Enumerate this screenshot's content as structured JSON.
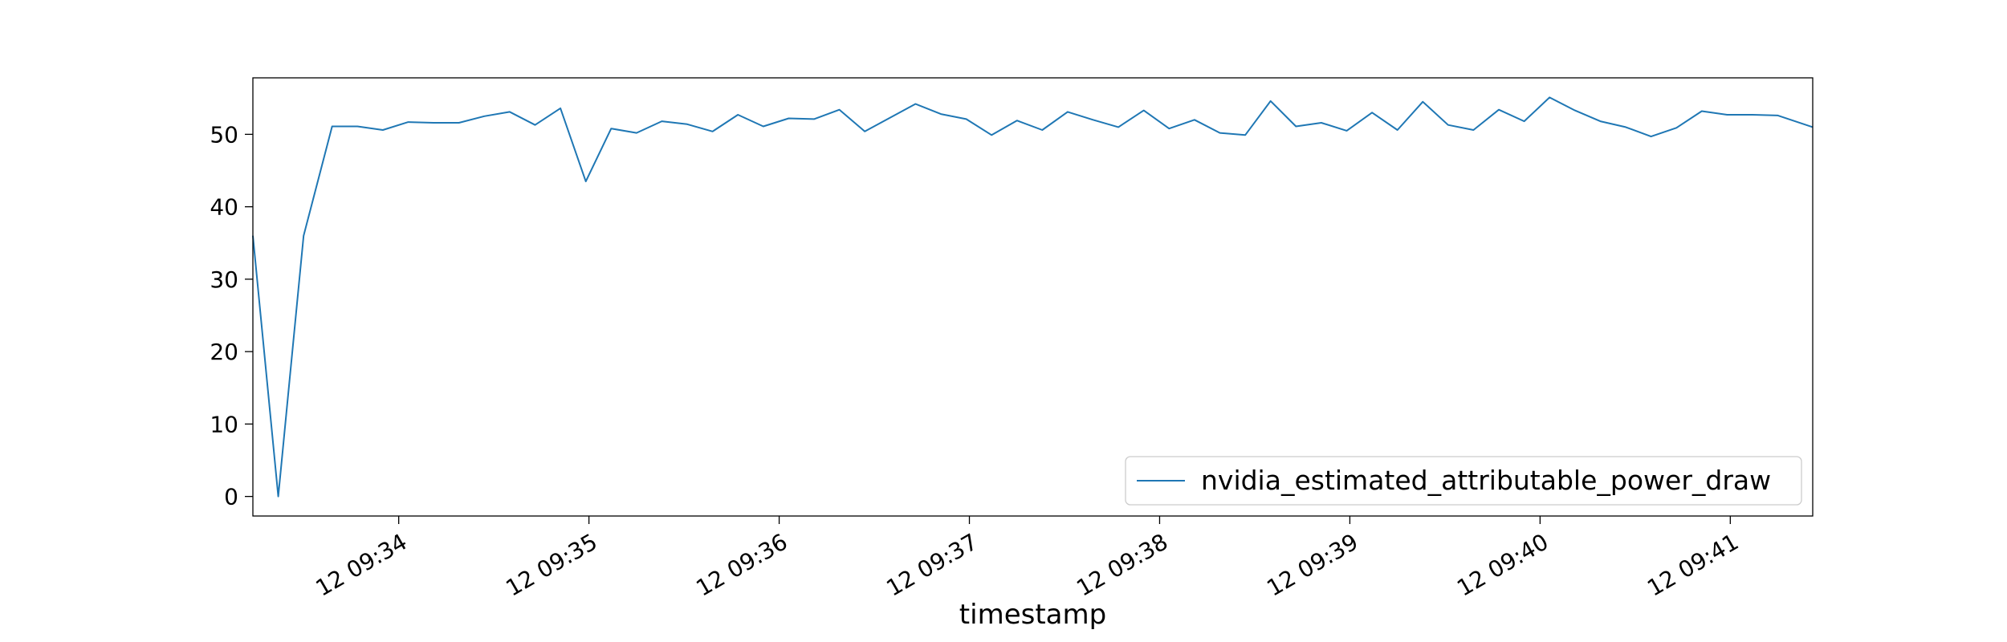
{
  "chart_data": {
    "type": "line",
    "title": "",
    "xlabel": "timestamp",
    "ylabel": "",
    "x_tick_labels": [
      "12 09:34",
      "12 09:35",
      "12 09:36",
      "12 09:37",
      "12 09:38",
      "12 09:39",
      "12 09:40",
      "12 09:41"
    ],
    "x_ticks_seconds": [
      2040,
      2100,
      2160,
      2220,
      2280,
      2340,
      2400,
      2460
    ],
    "xlim_seconds": [
      1994,
      2486
    ],
    "y_ticks": [
      0,
      10,
      20,
      30,
      40,
      50
    ],
    "ylim": [
      -2.7,
      57.8
    ],
    "legend": {
      "location": "lower-right"
    },
    "grid": false,
    "colors": {
      "series": "#1f77b4"
    },
    "series": [
      {
        "name": "nvidia_estimated_attributable_power_draw",
        "time_offsets_seconds": [
          1994,
          2002,
          2010,
          2019,
          2027,
          2035,
          2043,
          2051,
          2059,
          2067,
          2075,
          2083,
          2091,
          2099,
          2107,
          2115,
          2123,
          2131,
          2139,
          2147,
          2155,
          2163,
          2171,
          2179,
          2187,
          2195,
          2203,
          2211,
          2219,
          2227,
          2235,
          2243,
          2251,
          2259,
          2267,
          2275,
          2283,
          2291,
          2299,
          2307,
          2315,
          2323,
          2331,
          2339,
          2347,
          2355,
          2363,
          2371,
          2379,
          2387,
          2395,
          2403,
          2411,
          2419,
          2427,
          2435,
          2443,
          2451,
          2459,
          2467,
          2475,
          2486
        ],
        "values": [
          36.0,
          0.0,
          36.0,
          51.1,
          51.1,
          50.6,
          51.7,
          51.6,
          51.6,
          52.5,
          53.1,
          51.3,
          53.6,
          43.5,
          50.8,
          50.2,
          51.8,
          51.4,
          50.4,
          52.7,
          51.1,
          52.2,
          52.1,
          53.4,
          50.4,
          52.3,
          54.2,
          52.8,
          52.1,
          49.9,
          51.9,
          50.6,
          53.1,
          52.0,
          51.0,
          53.3,
          50.8,
          52.0,
          50.2,
          49.9,
          54.6,
          51.1,
          51.6,
          50.5,
          53.0,
          50.6,
          54.5,
          51.3,
          50.6,
          53.4,
          51.8,
          55.1,
          53.3,
          51.8,
          51.0,
          49.7,
          50.9,
          53.2,
          52.7,
          52.7,
          52.6,
          51.0
        ]
      }
    ]
  }
}
